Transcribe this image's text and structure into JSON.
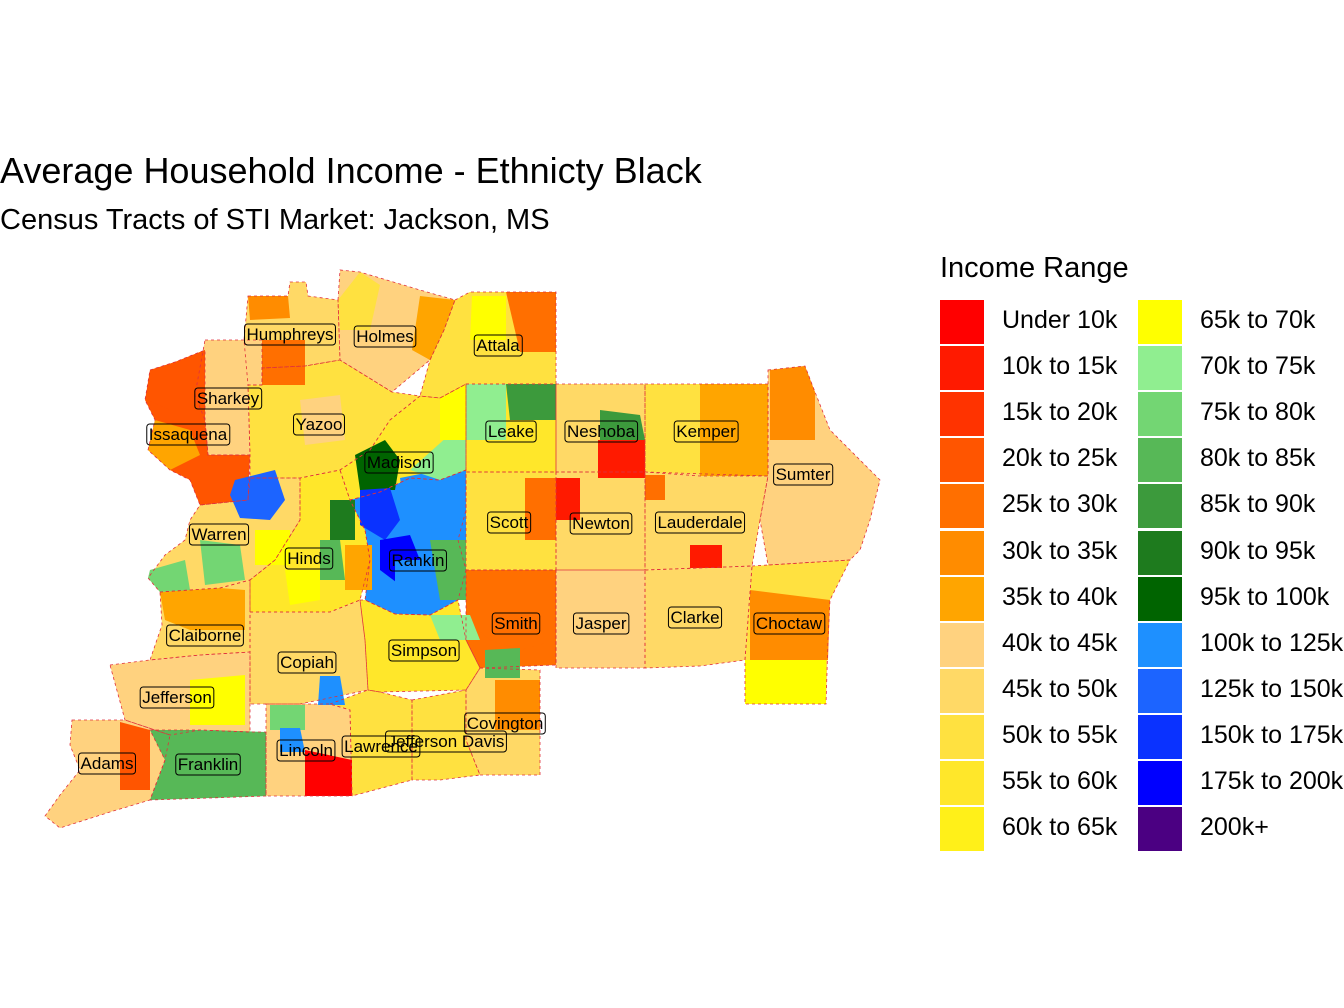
{
  "title": "Average Household Income - Ethnicty Black",
  "subtitle": "Census Tracts of STI Market: Jackson, MS",
  "legend": {
    "title": "Income Range",
    "items": [
      {
        "label": "Under 10k",
        "color": "#FF0000"
      },
      {
        "label": "10k to 15k",
        "color": "#FF1A00"
      },
      {
        "label": "15k to 20k",
        "color": "#FF3300"
      },
      {
        "label": "20k to 25k",
        "color": "#FF5500"
      },
      {
        "label": "25k to 30k",
        "color": "#FF6F00"
      },
      {
        "label": "30k to 35k",
        "color": "#FF8C00"
      },
      {
        "label": "35k to 40k",
        "color": "#FFA500"
      },
      {
        "label": "40k to 45k",
        "color": "#FFD27F"
      },
      {
        "label": "45k to 50k",
        "color": "#FFD966"
      },
      {
        "label": "50k to 55k",
        "color": "#FFE140"
      },
      {
        "label": "55k to 60k",
        "color": "#FFE72A"
      },
      {
        "label": "60k to 65k",
        "color": "#FFF019"
      },
      {
        "label": "65k to 70k",
        "color": "#FFFF00"
      },
      {
        "label": "70k to 75k",
        "color": "#90EE90"
      },
      {
        "label": "75k to 80k",
        "color": "#73D673"
      },
      {
        "label": "80k to 85k",
        "color": "#57B857"
      },
      {
        "label": "85k to 90k",
        "color": "#3C9A3C"
      },
      {
        "label": "90k to 95k",
        "color": "#1E7B1E"
      },
      {
        "label": "95k to 100k",
        "color": "#006400"
      },
      {
        "label": "100k to 125k",
        "color": "#1E90FF"
      },
      {
        "label": "125k to 150k",
        "color": "#1C64FF"
      },
      {
        "label": "150k to 175k",
        "color": "#0A32FF"
      },
      {
        "label": "175k to 200k",
        "color": "#0000FF"
      },
      {
        "label": "200k+",
        "color": "#4B0082"
      }
    ]
  },
  "counties": [
    {
      "name": "Humphreys",
      "fill": "#FFD966"
    },
    {
      "name": "Holmes",
      "fill": "#FFD27F"
    },
    {
      "name": "Attala",
      "fill": "#FFE140"
    },
    {
      "name": "Sharkey",
      "fill": "#FFD27F"
    },
    {
      "name": "Issaquena",
      "fill": "#FF5500"
    },
    {
      "name": "Yazoo",
      "fill": "#FFE140"
    },
    {
      "name": "Leake",
      "fill": "#FFE72A"
    },
    {
      "name": "Neshoba",
      "fill": "#FFD966"
    },
    {
      "name": "Kemper",
      "fill": "#FFE140"
    },
    {
      "name": "Madison",
      "fill": "#FFE72A"
    },
    {
      "name": "Sumter",
      "fill": "#FFD27F"
    },
    {
      "name": "Warren",
      "fill": "#FFD966"
    },
    {
      "name": "Scott",
      "fill": "#FFE140"
    },
    {
      "name": "Newton",
      "fill": "#FFD966"
    },
    {
      "name": "Lauderdale",
      "fill": "#FFD966"
    },
    {
      "name": "Hinds",
      "fill": "#FFE72A"
    },
    {
      "name": "Rankin",
      "fill": "#1E90FF"
    },
    {
      "name": "Smith",
      "fill": "#FF6F00"
    },
    {
      "name": "Jasper",
      "fill": "#FFD27F"
    },
    {
      "name": "Clarke",
      "fill": "#FFD966"
    },
    {
      "name": "Choctaw",
      "fill": "#FFE140"
    },
    {
      "name": "Claiborne",
      "fill": "#FFD966"
    },
    {
      "name": "Copiah",
      "fill": "#FFD966"
    },
    {
      "name": "Simpson",
      "fill": "#FFE72A"
    },
    {
      "name": "Jefferson",
      "fill": "#FFD27F"
    },
    {
      "name": "Covington",
      "fill": "#FFD966"
    },
    {
      "name": "Adams",
      "fill": "#FFD27F"
    },
    {
      "name": "Franklin",
      "fill": "#57B857"
    },
    {
      "name": "Lincoln",
      "fill": "#FFD27F"
    },
    {
      "name": "Lawrence",
      "fill": "#FFE140"
    },
    {
      "name": "Jefferson Davis",
      "fill": "#FFE140"
    }
  ]
}
